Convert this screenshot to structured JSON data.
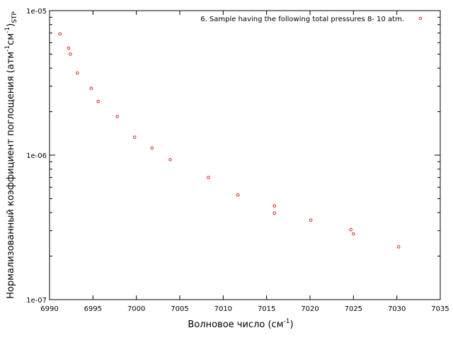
{
  "chart_data": {
    "type": "scatter",
    "xlabel": "Волновое число (см",
    "xlabel_sup": "-1",
    "xlabel_tail": ")",
    "ylabel_main": "Нормализованный коэффициент поглощения (атм",
    "ylabel_sup1": "-1",
    "ylabel_mid": "см",
    "ylabel_sup2": "-1",
    "ylabel_tail": ")",
    "ylabel_sub": "STP",
    "xlim": [
      6990,
      7035
    ],
    "ylim": [
      1e-07,
      1e-05
    ],
    "yscale": "log",
    "xticks": [
      "6990",
      "6995",
      "7000",
      "7005",
      "7010",
      "7015",
      "7020",
      "7025",
      "7030",
      "7035"
    ],
    "yticks": [
      "1e-07",
      "1e-06",
      "1e-05"
    ],
    "legend_position": "top-right",
    "marker_color": "#e8281e",
    "series": [
      {
        "name": "6. Sample having the following total pressures 8- 10 atm.",
        "x": [
          6991.2,
          6992.2,
          6992.4,
          6993.2,
          6994.8,
          6995.6,
          6997.8,
          6999.8,
          7001.8,
          7003.9,
          7008.3,
          7011.7,
          7015.9,
          7015.9,
          7020.1,
          7024.7,
          7025.0,
          7030.2
        ],
        "y": [
          6.9e-06,
          5.5e-06,
          5e-06,
          3.7e-06,
          2.9e-06,
          2.35e-06,
          1.85e-06,
          1.33e-06,
          1.12e-06,
          9.3e-07,
          7e-07,
          5.3e-07,
          4.45e-07,
          3.97e-07,
          3.55e-07,
          3.05e-07,
          2.85e-07,
          2.32e-07
        ]
      }
    ]
  }
}
